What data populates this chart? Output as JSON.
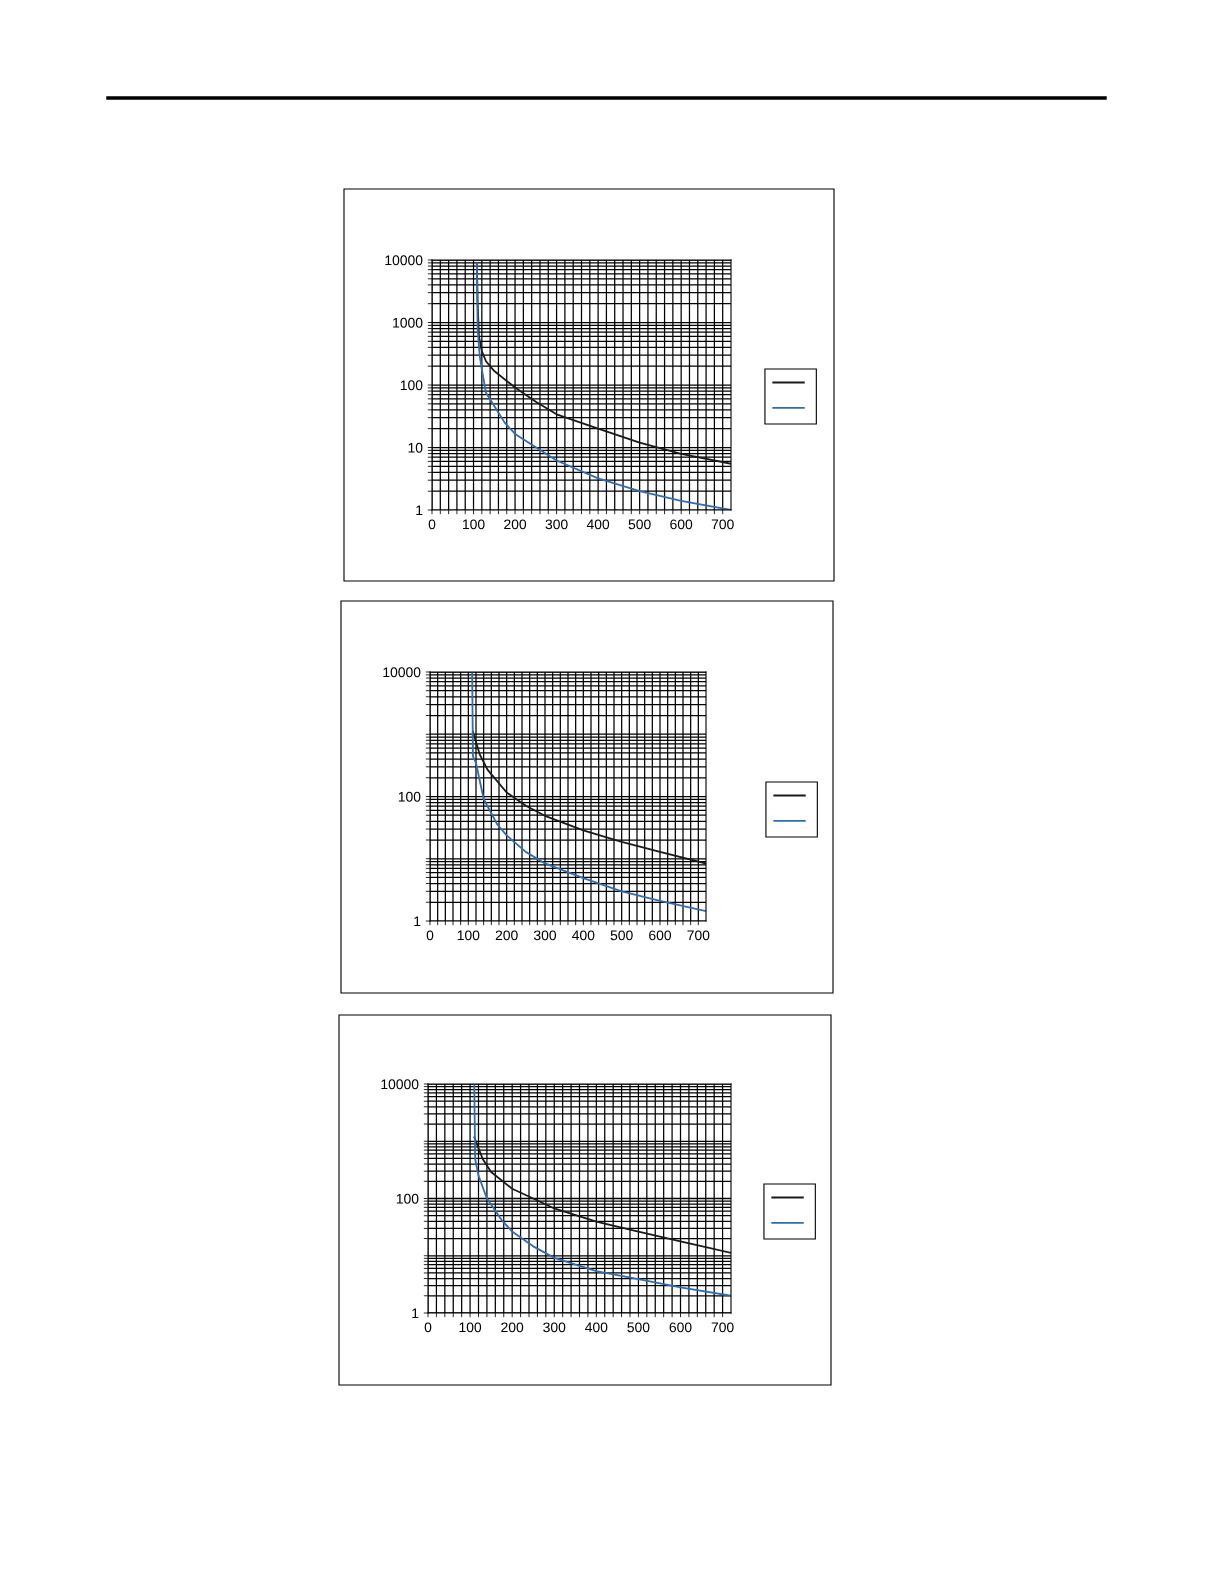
{
  "chart_data": [
    {
      "type": "line",
      "log": "y",
      "grid": true,
      "xlim": [
        0,
        720
      ],
      "ylim": [
        1,
        10000
      ],
      "xticks": [
        0,
        {
          "value": 20,
          "label": null
        },
        {
          "value": 40,
          "label": null
        },
        {
          "value": 60,
          "label": null
        },
        {
          "value": 80,
          "label": null
        },
        100,
        {
          "value": 120,
          "label": null
        },
        {
          "value": 140,
          "label": null
        },
        {
          "value": 160,
          "label": null
        },
        {
          "value": 180,
          "label": null
        },
        200,
        {
          "value": 220,
          "label": null
        },
        {
          "value": 240,
          "label": null
        },
        {
          "value": 260,
          "label": null
        },
        {
          "value": 280,
          "label": null
        },
        300,
        {
          "value": 320,
          "label": null
        },
        {
          "value": 340,
          "label": null
        },
        {
          "value": 360,
          "label": null
        },
        {
          "value": 380,
          "label": null
        },
        400,
        {
          "value": 420,
          "label": null
        },
        {
          "value": 440,
          "label": null
        },
        {
          "value": 460,
          "label": null
        },
        {
          "value": 480,
          "label": null
        },
        500,
        {
          "value": 520,
          "label": null
        },
        {
          "value": 540,
          "label": null
        },
        {
          "value": 560,
          "label": null
        },
        {
          "value": 580,
          "label": null
        },
        600,
        {
          "value": 620,
          "label": null
        },
        {
          "value": 640,
          "label": null
        },
        {
          "value": 660,
          "label": null
        },
        {
          "value": 680,
          "label": null
        },
        700
      ],
      "yticks": [
        1,
        {
          "value": 2,
          "label": null
        },
        {
          "value": 3,
          "label": null
        },
        {
          "value": 4,
          "label": null
        },
        {
          "value": 5,
          "label": null
        },
        {
          "value": 6,
          "label": null
        },
        {
          "value": 7,
          "label": null
        },
        {
          "value": 8,
          "label": null
        },
        {
          "value": 9,
          "label": null
        },
        10,
        {
          "value": 20,
          "label": null
        },
        {
          "value": 30,
          "label": null
        },
        {
          "value": 40,
          "label": null
        },
        {
          "value": 50,
          "label": null
        },
        {
          "value": 60,
          "label": null
        },
        {
          "value": 70,
          "label": null
        },
        {
          "value": 80,
          "label": null
        },
        {
          "value": 90,
          "label": null
        },
        100,
        {
          "value": 200,
          "label": null
        },
        {
          "value": 300,
          "label": null
        },
        {
          "value": 400,
          "label": null
        },
        {
          "value": 500,
          "label": null
        },
        {
          "value": 600,
          "label": null
        },
        {
          "value": 700,
          "label": null
        },
        {
          "value": 800,
          "label": null
        },
        {
          "value": 900,
          "label": null
        },
        1000,
        {
          "value": 2000,
          "label": null
        },
        {
          "value": 3000,
          "label": null
        },
        {
          "value": 4000,
          "label": null
        },
        {
          "value": 5000,
          "label": null
        },
        {
          "value": 6000,
          "label": null
        },
        {
          "value": 7000,
          "label": null
        },
        {
          "value": 8000,
          "label": null
        },
        {
          "value": 9000,
          "label": null
        },
        10000
      ],
      "series": [
        {
          "color": "#1a1a1a",
          "x": [
            108,
            110,
            113,
            120,
            130,
            150,
            200,
            250,
            300,
            400,
            500,
            600,
            720
          ],
          "values": [
            8700,
            2000,
            600,
            350,
            240,
            167,
            91,
            54,
            34,
            20,
            12,
            7.9,
            5.5
          ]
        },
        {
          "color": "#2e6db4",
          "x": [
            108,
            110,
            115,
            120,
            130,
            150,
            175,
            200,
            250,
            300,
            400,
            500,
            600,
            720
          ],
          "values": [
            8700,
            760,
            290,
            178,
            75,
            46,
            25,
            16.5,
            10.1,
            6.2,
            3.2,
            2.0,
            1.4,
            1.0
          ]
        }
      ]
    },
    {
      "type": "line",
      "log": "y",
      "grid": true,
      "xlim": [
        0,
        720
      ],
      "ylim": [
        1,
        10000
      ],
      "xticks": [
        0,
        {
          "value": 20,
          "label": null
        },
        {
          "value": 40,
          "label": null
        },
        {
          "value": 60,
          "label": null
        },
        {
          "value": 80,
          "label": null
        },
        100,
        {
          "value": 120,
          "label": null
        },
        {
          "value": 140,
          "label": null
        },
        {
          "value": 160,
          "label": null
        },
        {
          "value": 180,
          "label": null
        },
        200,
        {
          "value": 220,
          "label": null
        },
        {
          "value": 240,
          "label": null
        },
        {
          "value": 260,
          "label": null
        },
        {
          "value": 280,
          "label": null
        },
        300,
        {
          "value": 320,
          "label": null
        },
        {
          "value": 340,
          "label": null
        },
        {
          "value": 360,
          "label": null
        },
        {
          "value": 380,
          "label": null
        },
        400,
        {
          "value": 420,
          "label": null
        },
        {
          "value": 440,
          "label": null
        },
        {
          "value": 460,
          "label": null
        },
        {
          "value": 480,
          "label": null
        },
        500,
        {
          "value": 520,
          "label": null
        },
        {
          "value": 540,
          "label": null
        },
        {
          "value": 560,
          "label": null
        },
        {
          "value": 580,
          "label": null
        },
        600,
        {
          "value": 620,
          "label": null
        },
        {
          "value": 640,
          "label": null
        },
        {
          "value": 660,
          "label": null
        },
        {
          "value": 680,
          "label": null
        },
        700
      ],
      "yticks": [
        1,
        {
          "value": 2,
          "label": null
        },
        {
          "value": 3,
          "label": null
        },
        {
          "value": 4,
          "label": null
        },
        {
          "value": 5,
          "label": null
        },
        {
          "value": 6,
          "label": null
        },
        {
          "value": 7,
          "label": null
        },
        {
          "value": 8,
          "label": null
        },
        {
          "value": 9,
          "label": null
        },
        {
          "value": 10,
          "label": null
        },
        {
          "value": 20,
          "label": null
        },
        {
          "value": 30,
          "label": null
        },
        {
          "value": 40,
          "label": null
        },
        {
          "value": 50,
          "label": null
        },
        {
          "value": 60,
          "label": null
        },
        {
          "value": 70,
          "label": null
        },
        {
          "value": 80,
          "label": null
        },
        {
          "value": 90,
          "label": null
        },
        100,
        {
          "value": 200,
          "label": null
        },
        {
          "value": 300,
          "label": null
        },
        {
          "value": 400,
          "label": null
        },
        {
          "value": 500,
          "label": null
        },
        {
          "value": 600,
          "label": null
        },
        {
          "value": 700,
          "label": null
        },
        {
          "value": 800,
          "label": null
        },
        {
          "value": 900,
          "label": null
        },
        {
          "value": 1000,
          "label": null
        },
        {
          "value": 2000,
          "label": null
        },
        {
          "value": 3000,
          "label": null
        },
        {
          "value": 4000,
          "label": null
        },
        {
          "value": 5000,
          "label": null
        },
        {
          "value": 6000,
          "label": null
        },
        {
          "value": 7000,
          "label": null
        },
        {
          "value": 8000,
          "label": null
        },
        {
          "value": 9000,
          "label": null
        },
        10000
      ],
      "series": [
        {
          "color": "#1a1a1a",
          "x": [
            112,
            130,
            150,
            200,
            250,
            300,
            400,
            500,
            600,
            720
          ],
          "values": [
            1100,
            470,
            270,
            116,
            71,
            49,
            28.5,
            18.6,
            12.9,
            8.4
          ]
        },
        {
          "color": "#2e6db4",
          "x": [
            110,
            112,
            120,
            140,
            175,
            200,
            250,
            300,
            400,
            500,
            600,
            720
          ],
          "values": [
            10000,
            440,
            345,
            91,
            36,
            23.7,
            12.9,
            8.4,
            4.9,
            3.0,
            2.1,
            1.44
          ]
        }
      ]
    },
    {
      "type": "line",
      "log": "y",
      "grid": true,
      "xlim": [
        0,
        720
      ],
      "ylim": [
        1,
        10000
      ],
      "xticks": [
        0,
        {
          "value": 20,
          "label": null
        },
        {
          "value": 40,
          "label": null
        },
        {
          "value": 60,
          "label": null
        },
        {
          "value": 80,
          "label": null
        },
        100,
        {
          "value": 120,
          "label": null
        },
        {
          "value": 140,
          "label": null
        },
        {
          "value": 160,
          "label": null
        },
        {
          "value": 180,
          "label": null
        },
        200,
        {
          "value": 220,
          "label": null
        },
        {
          "value": 240,
          "label": null
        },
        {
          "value": 260,
          "label": null
        },
        {
          "value": 280,
          "label": null
        },
        300,
        {
          "value": 320,
          "label": null
        },
        {
          "value": 340,
          "label": null
        },
        {
          "value": 360,
          "label": null
        },
        {
          "value": 380,
          "label": null
        },
        400,
        {
          "value": 420,
          "label": null
        },
        {
          "value": 440,
          "label": null
        },
        {
          "value": 460,
          "label": null
        },
        {
          "value": 480,
          "label": null
        },
        500,
        {
          "value": 520,
          "label": null
        },
        {
          "value": 540,
          "label": null
        },
        {
          "value": 560,
          "label": null
        },
        {
          "value": 580,
          "label": null
        },
        600,
        {
          "value": 620,
          "label": null
        },
        {
          "value": 640,
          "label": null
        },
        {
          "value": 660,
          "label": null
        },
        {
          "value": 680,
          "label": null
        },
        700
      ],
      "yticks": [
        1,
        {
          "value": 2,
          "label": null
        },
        {
          "value": 3,
          "label": null
        },
        {
          "value": 4,
          "label": null
        },
        {
          "value": 5,
          "label": null
        },
        {
          "value": 6,
          "label": null
        },
        {
          "value": 7,
          "label": null
        },
        {
          "value": 8,
          "label": null
        },
        {
          "value": 9,
          "label": null
        },
        {
          "value": 10,
          "label": null
        },
        {
          "value": 20,
          "label": null
        },
        {
          "value": 30,
          "label": null
        },
        {
          "value": 40,
          "label": null
        },
        {
          "value": 50,
          "label": null
        },
        {
          "value": 60,
          "label": null
        },
        {
          "value": 70,
          "label": null
        },
        {
          "value": 80,
          "label": null
        },
        {
          "value": 90,
          "label": null
        },
        100,
        {
          "value": 200,
          "label": null
        },
        {
          "value": 300,
          "label": null
        },
        {
          "value": 400,
          "label": null
        },
        {
          "value": 500,
          "label": null
        },
        {
          "value": 600,
          "label": null
        },
        {
          "value": 700,
          "label": null
        },
        {
          "value": 800,
          "label": null
        },
        {
          "value": 900,
          "label": null
        },
        {
          "value": 1000,
          "label": null
        },
        {
          "value": 2000,
          "label": null
        },
        {
          "value": 3000,
          "label": null
        },
        {
          "value": 4000,
          "label": null
        },
        {
          "value": 5000,
          "label": null
        },
        {
          "value": 6000,
          "label": null
        },
        {
          "value": 7000,
          "label": null
        },
        {
          "value": 8000,
          "label": null
        },
        {
          "value": 9000,
          "label": null
        },
        10000
      ],
      "series": [
        {
          "color": "#1a1a1a",
          "x": [
            110,
            130,
            150,
            200,
            250,
            300,
            400,
            500,
            600,
            720
          ],
          "values": [
            1170,
            490,
            290,
            148,
            100,
            67,
            39.5,
            26.5,
            17.8,
            11.2
          ]
        },
        {
          "color": "#2e6db4",
          "x": [
            110,
            112,
            120,
            140,
            175,
            200,
            250,
            300,
            400,
            500,
            600,
            720
          ],
          "values": [
            10000,
            490,
            251,
            100,
            42,
            26.5,
            14.6,
            9.2,
            5.4,
            3.9,
            2.8,
            2.0
          ]
        }
      ]
    }
  ]
}
